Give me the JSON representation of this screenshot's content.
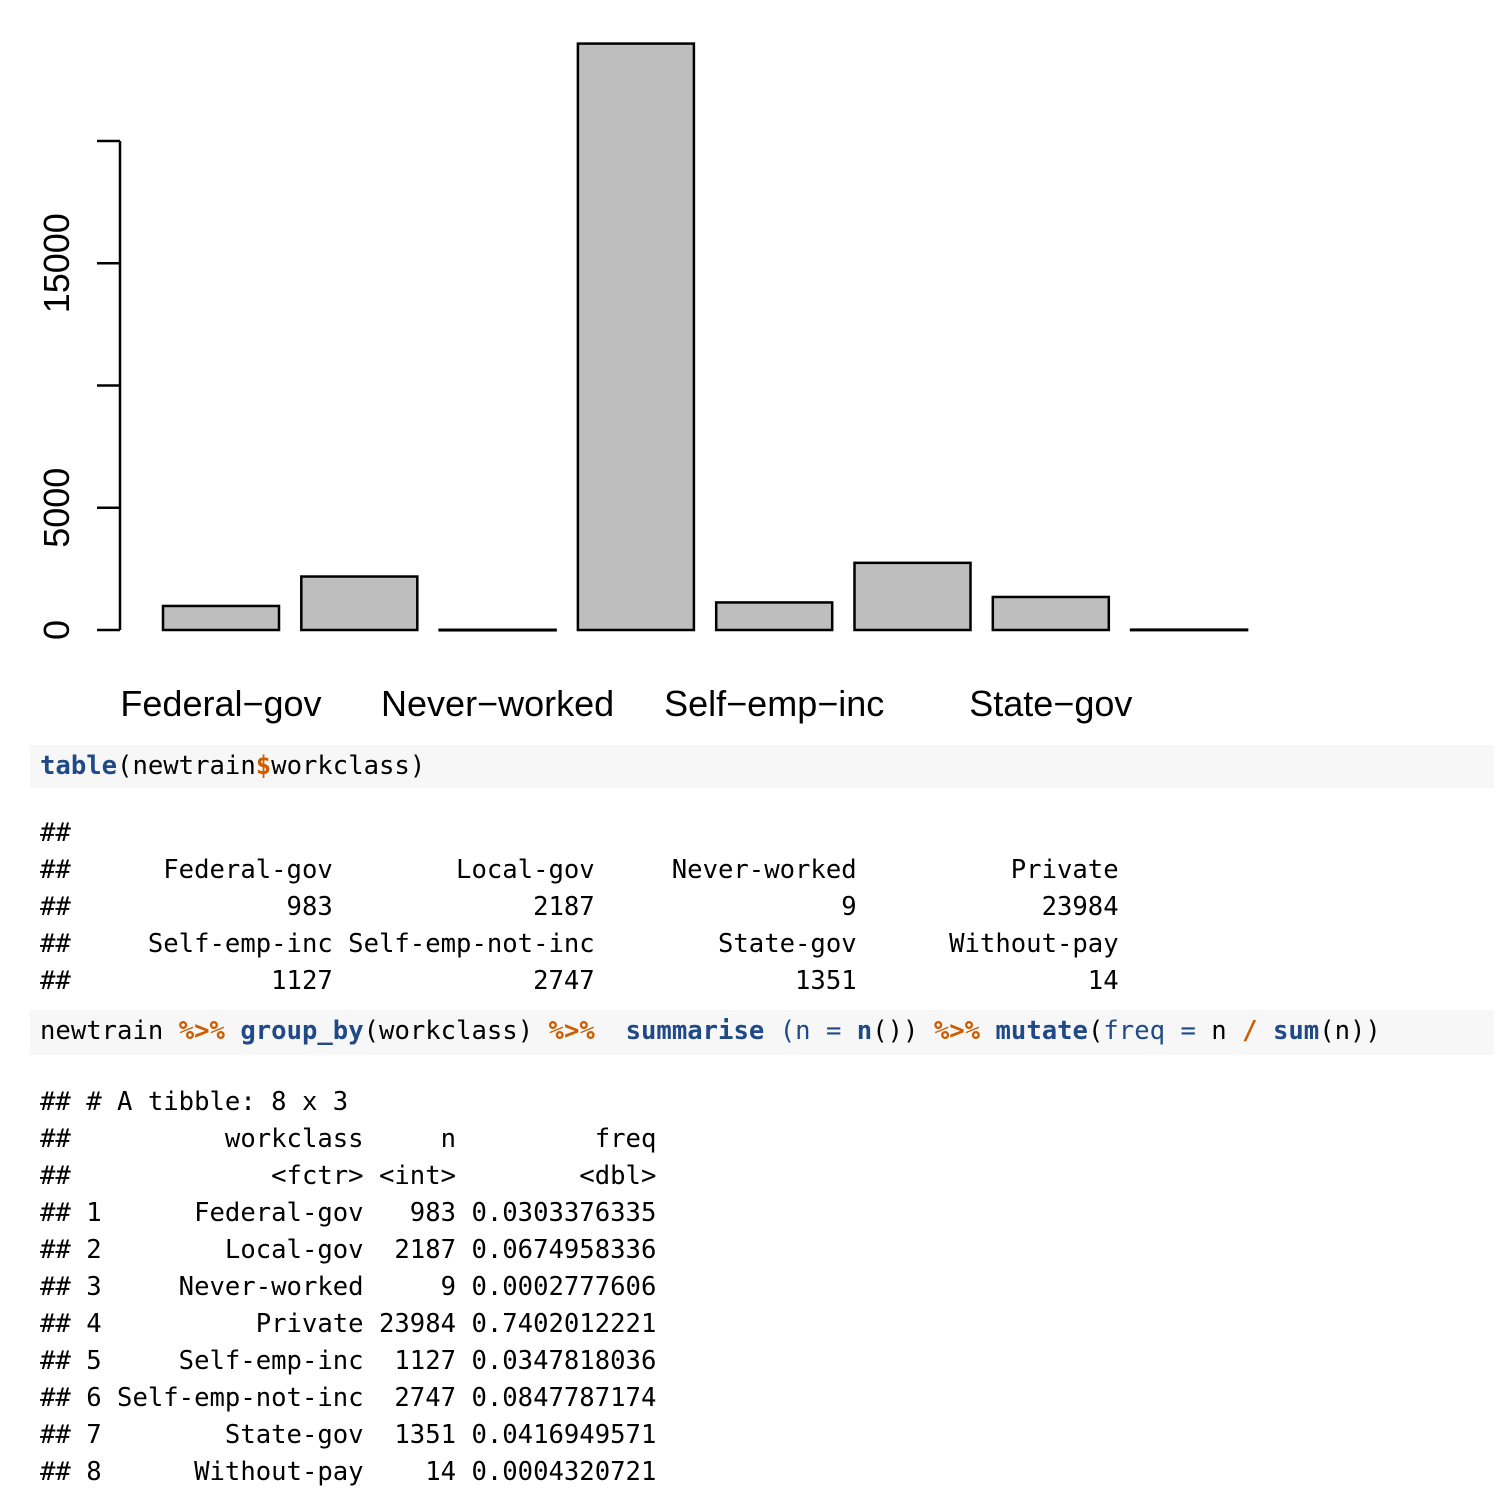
{
  "chart_data": {
    "type": "bar",
    "categories": [
      "Federal-gov",
      "Local-gov",
      "Never-worked",
      "Private",
      "Self-emp-inc",
      "Self-emp-not-inc",
      "State-gov",
      "Without-pay"
    ],
    "values": [
      983,
      2187,
      9,
      23984,
      1127,
      2747,
      1351,
      14
    ],
    "shown_tick_labels": [
      "0",
      "5000",
      "15000"
    ],
    "tick_values": [
      0,
      5000,
      10000,
      15000,
      20000
    ],
    "shown_category_labels": [
      "Federal−gov",
      "Never−worked",
      "Self−emp−inc",
      "State−gov"
    ],
    "bar_color": "#bebebe",
    "title": "",
    "xlabel": "",
    "ylabel": ""
  },
  "code1": {
    "fn": "table",
    "open": "(newtrain",
    "dollar": "$",
    "rest": "workclass)"
  },
  "output1": "##\n##      Federal-gov        Local-gov     Never-worked          Private\n##              983             2187                9            23984\n##     Self-emp-inc Self-emp-not-inc        State-gov      Without-pay\n##             1127             2747             1351               14",
  "code2": {
    "t1": "newtrain ",
    "op1": "%>%",
    "sp1": " ",
    "fn1": "group_by",
    "t2": "(workclass) ",
    "op2": "%>%",
    "sp2": "  ",
    "fn2": "summarise",
    "t3": " (",
    "a1": "n",
    "t4": " ",
    "eq1": "=",
    "t5": " ",
    "fn3": "n",
    "t6": "()) ",
    "op3": "%>%",
    "sp3": " ",
    "fn4": "mutate",
    "t7": "(",
    "a2": "freq",
    "t8": " ",
    "eq2": "=",
    "t9": " n ",
    "op4": "/",
    "t10": " ",
    "fn5": "sum",
    "t11": "(n))"
  },
  "output2": "## # A tibble: 8 x 3\n##          workclass     n         freq\n##             <fctr> <int>        <dbl>\n## 1      Federal-gov   983 0.0303376335\n## 2        Local-gov  2187 0.0674958336\n## 3     Never-worked     9 0.0002777606\n## 4          Private 23984 0.7402012221\n## 5     Self-emp-inc  1127 0.0347818036\n## 6 Self-emp-not-inc  2747 0.0847787174\n## 7        State-gov  1351 0.0416949571\n## 8      Without-pay    14 0.0004320721"
}
